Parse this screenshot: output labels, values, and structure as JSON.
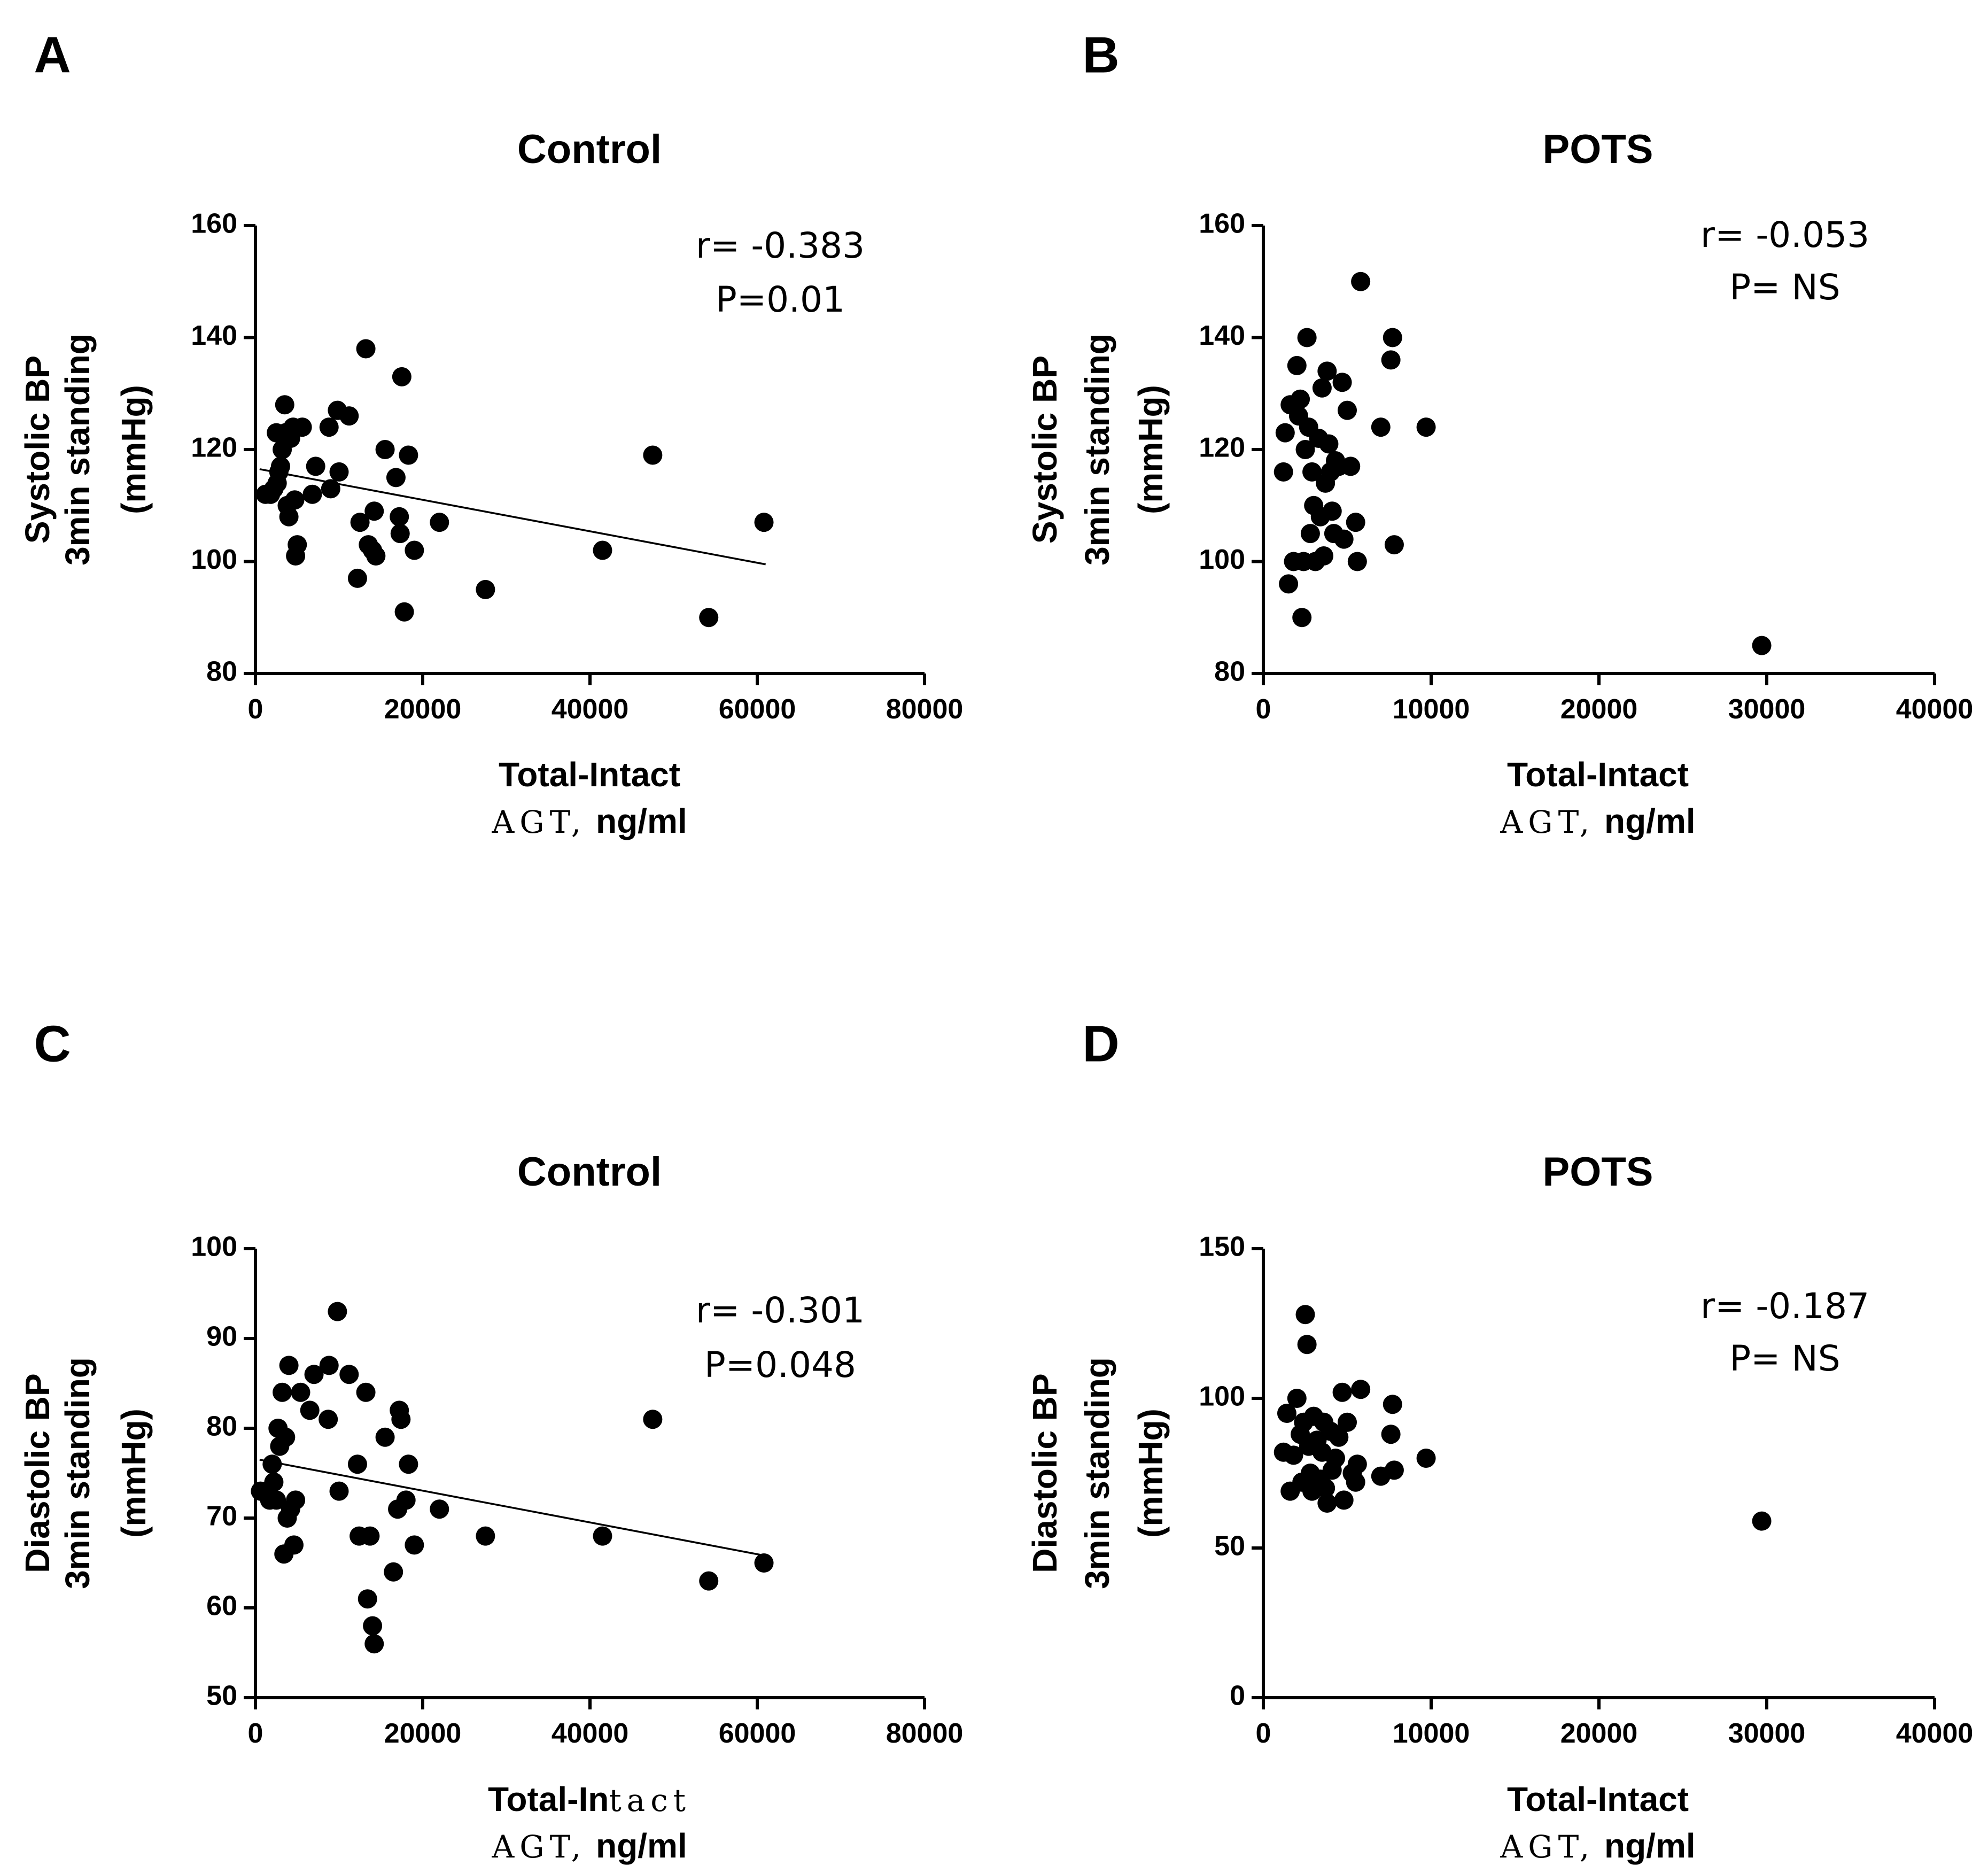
{
  "chart_data": [
    {
      "panel": "A",
      "type": "scatter",
      "title": "Control",
      "ylabel_line1": "Systolic BP",
      "ylabel_line2": "3min standing",
      "ylabel_line3": "(mmHg)",
      "xlabel_line1": "Total-Intact",
      "xlabel_line2a": "AGT,",
      "xlabel_line2b": " ng/ml",
      "xlim": [
        0,
        80000
      ],
      "ylim": [
        80,
        160
      ],
      "xticks": [
        0,
        20000,
        40000,
        60000,
        80000
      ],
      "yticks": [
        80,
        100,
        120,
        140,
        160
      ],
      "annotation_r": "r= -0.383",
      "annotation_p": "P=0.01",
      "fit_line": {
        "x": [
          500,
          61000
        ],
        "y": [
          116.5,
          99.5
        ]
      },
      "points": [
        {
          "x": 1200,
          "y": 112
        },
        {
          "x": 1800,
          "y": 112
        },
        {
          "x": 2200,
          "y": 113
        },
        {
          "x": 2500,
          "y": 123
        },
        {
          "x": 2600,
          "y": 114
        },
        {
          "x": 2800,
          "y": 116
        },
        {
          "x": 3000,
          "y": 117
        },
        {
          "x": 3200,
          "y": 120
        },
        {
          "x": 3500,
          "y": 128
        },
        {
          "x": 3600,
          "y": 123
        },
        {
          "x": 3800,
          "y": 110
        },
        {
          "x": 4000,
          "y": 108
        },
        {
          "x": 4200,
          "y": 122
        },
        {
          "x": 4500,
          "y": 124
        },
        {
          "x": 4700,
          "y": 111
        },
        {
          "x": 4800,
          "y": 101
        },
        {
          "x": 5000,
          "y": 103
        },
        {
          "x": 5600,
          "y": 124
        },
        {
          "x": 6800,
          "y": 112
        },
        {
          "x": 7200,
          "y": 117
        },
        {
          "x": 8800,
          "y": 124
        },
        {
          "x": 9000,
          "y": 113
        },
        {
          "x": 9800,
          "y": 127
        },
        {
          "x": 10000,
          "y": 116
        },
        {
          "x": 11200,
          "y": 126
        },
        {
          "x": 12200,
          "y": 97
        },
        {
          "x": 12500,
          "y": 107
        },
        {
          "x": 13200,
          "y": 138
        },
        {
          "x": 13500,
          "y": 103
        },
        {
          "x": 14000,
          "y": 102
        },
        {
          "x": 14200,
          "y": 109
        },
        {
          "x": 14400,
          "y": 101
        },
        {
          "x": 15500,
          "y": 120
        },
        {
          "x": 16800,
          "y": 115
        },
        {
          "x": 17200,
          "y": 108
        },
        {
          "x": 17300,
          "y": 105
        },
        {
          "x": 17500,
          "y": 133
        },
        {
          "x": 17800,
          "y": 91
        },
        {
          "x": 18300,
          "y": 119
        },
        {
          "x": 19000,
          "y": 102
        },
        {
          "x": 22000,
          "y": 107
        },
        {
          "x": 27500,
          "y": 95
        },
        {
          "x": 41500,
          "y": 102
        },
        {
          "x": 47500,
          "y": 119
        },
        {
          "x": 54200,
          "y": 90
        },
        {
          "x": 60800,
          "y": 107
        }
      ]
    },
    {
      "panel": "B",
      "type": "scatter",
      "title": "POTS",
      "ylabel_line1": "Systolic BP",
      "ylabel_line2": "3min standing",
      "ylabel_line3": "(mmHg)",
      "xlabel_line1": "Total-Intact",
      "xlabel_line2a": "AGT,",
      "xlabel_line2b": " ng/ml",
      "xlim": [
        0,
        40000
      ],
      "ylim": [
        80,
        160
      ],
      "xticks": [
        0,
        10000,
        20000,
        30000,
        40000
      ],
      "yticks": [
        80,
        100,
        120,
        140,
        160
      ],
      "annotation_r": "r= -0.053",
      "annotation_p": "P= NS",
      "points": [
        {
          "x": 1200,
          "y": 116
        },
        {
          "x": 1300,
          "y": 123
        },
        {
          "x": 1500,
          "y": 96
        },
        {
          "x": 1600,
          "y": 128
        },
        {
          "x": 1800,
          "y": 100
        },
        {
          "x": 2000,
          "y": 135
        },
        {
          "x": 2100,
          "y": 126
        },
        {
          "x": 2200,
          "y": 129
        },
        {
          "x": 2300,
          "y": 90
        },
        {
          "x": 2400,
          "y": 100
        },
        {
          "x": 2500,
          "y": 120
        },
        {
          "x": 2600,
          "y": 140
        },
        {
          "x": 2700,
          "y": 124
        },
        {
          "x": 2800,
          "y": 105
        },
        {
          "x": 2900,
          "y": 116
        },
        {
          "x": 3000,
          "y": 110
        },
        {
          "x": 3100,
          "y": 100
        },
        {
          "x": 3300,
          "y": 122
        },
        {
          "x": 3400,
          "y": 108
        },
        {
          "x": 3500,
          "y": 131
        },
        {
          "x": 3600,
          "y": 101
        },
        {
          "x": 3700,
          "y": 114
        },
        {
          "x": 3800,
          "y": 134
        },
        {
          "x": 3900,
          "y": 121
        },
        {
          "x": 4000,
          "y": 116
        },
        {
          "x": 4100,
          "y": 109
        },
        {
          "x": 4200,
          "y": 105
        },
        {
          "x": 4300,
          "y": 118
        },
        {
          "x": 4500,
          "y": 117
        },
        {
          "x": 4700,
          "y": 132
        },
        {
          "x": 4800,
          "y": 104
        },
        {
          "x": 5000,
          "y": 127
        },
        {
          "x": 5200,
          "y": 117
        },
        {
          "x": 5500,
          "y": 107
        },
        {
          "x": 5600,
          "y": 100
        },
        {
          "x": 5800,
          "y": 150
        },
        {
          "x": 7000,
          "y": 124
        },
        {
          "x": 7600,
          "y": 136
        },
        {
          "x": 7700,
          "y": 140
        },
        {
          "x": 7800,
          "y": 103
        },
        {
          "x": 9700,
          "y": 124
        },
        {
          "x": 29700,
          "y": 85
        }
      ]
    },
    {
      "panel": "C",
      "type": "scatter",
      "title": "Control",
      "ylabel_line1": "Diastolic BP",
      "ylabel_line2": "3min standing",
      "ylabel_line3": "(mmHg)",
      "xlabel_line1a": "Total-In",
      "xlabel_line1b": "tact",
      "xlabel_line2a": "AGT,",
      "xlabel_line2b": " ng/ml",
      "xlim": [
        0,
        80000
      ],
      "ylim": [
        50,
        100
      ],
      "xticks": [
        0,
        20000,
        40000,
        60000,
        80000
      ],
      "yticks": [
        50,
        60,
        70,
        80,
        90,
        100
      ],
      "annotation_r": "r= -0.301",
      "annotation_p": "P=0.048",
      "fit_line": {
        "x": [
          500,
          61000
        ],
        "y": [
          76.5,
          65.8
        ]
      },
      "points": [
        {
          "x": 600,
          "y": 73
        },
        {
          "x": 1200,
          "y": 73
        },
        {
          "x": 1700,
          "y": 72
        },
        {
          "x": 2000,
          "y": 76
        },
        {
          "x": 2200,
          "y": 74
        },
        {
          "x": 2500,
          "y": 72
        },
        {
          "x": 2700,
          "y": 80
        },
        {
          "x": 2900,
          "y": 78
        },
        {
          "x": 3200,
          "y": 84
        },
        {
          "x": 3400,
          "y": 66
        },
        {
          "x": 3600,
          "y": 79
        },
        {
          "x": 3800,
          "y": 70
        },
        {
          "x": 4000,
          "y": 87
        },
        {
          "x": 4200,
          "y": 71
        },
        {
          "x": 4600,
          "y": 67
        },
        {
          "x": 4800,
          "y": 72
        },
        {
          "x": 5400,
          "y": 84
        },
        {
          "x": 6500,
          "y": 82
        },
        {
          "x": 7000,
          "y": 86
        },
        {
          "x": 8700,
          "y": 81
        },
        {
          "x": 8800,
          "y": 87
        },
        {
          "x": 9800,
          "y": 93
        },
        {
          "x": 10000,
          "y": 73
        },
        {
          "x": 11200,
          "y": 86
        },
        {
          "x": 12200,
          "y": 76
        },
        {
          "x": 12400,
          "y": 68
        },
        {
          "x": 13200,
          "y": 84
        },
        {
          "x": 13400,
          "y": 61
        },
        {
          "x": 13700,
          "y": 68
        },
        {
          "x": 14000,
          "y": 58
        },
        {
          "x": 14200,
          "y": 56
        },
        {
          "x": 15500,
          "y": 79
        },
        {
          "x": 16500,
          "y": 64
        },
        {
          "x": 17000,
          "y": 71
        },
        {
          "x": 17200,
          "y": 82
        },
        {
          "x": 17400,
          "y": 81
        },
        {
          "x": 18000,
          "y": 72
        },
        {
          "x": 18300,
          "y": 76
        },
        {
          "x": 19000,
          "y": 67
        },
        {
          "x": 22000,
          "y": 71
        },
        {
          "x": 27500,
          "y": 68
        },
        {
          "x": 41500,
          "y": 68
        },
        {
          "x": 47500,
          "y": 81
        },
        {
          "x": 54200,
          "y": 63
        },
        {
          "x": 60800,
          "y": 65
        }
      ]
    },
    {
      "panel": "D",
      "type": "scatter",
      "title": "POTS",
      "ylabel_line1": "Diastolic BP",
      "ylabel_line2": "3min standing",
      "ylabel_line3": "(mmHg)",
      "xlabel_line1": "Total-Intact",
      "xlabel_line2a": "AGT,",
      "xlabel_line2b": " ng/ml",
      "xlim": [
        0,
        40000
      ],
      "ylim": [
        0,
        150
      ],
      "xticks": [
        0,
        10000,
        20000,
        30000,
        40000
      ],
      "yticks": [
        0,
        50,
        100,
        150
      ],
      "annotation_r": "r= -0.187",
      "annotation_p": "P= NS",
      "points": [
        {
          "x": 1200,
          "y": 82
        },
        {
          "x": 1400,
          "y": 95
        },
        {
          "x": 1600,
          "y": 69
        },
        {
          "x": 1800,
          "y": 81
        },
        {
          "x": 2000,
          "y": 100
        },
        {
          "x": 2200,
          "y": 88
        },
        {
          "x": 2300,
          "y": 72
        },
        {
          "x": 2400,
          "y": 92
        },
        {
          "x": 2500,
          "y": 128
        },
        {
          "x": 2600,
          "y": 118
        },
        {
          "x": 2700,
          "y": 84
        },
        {
          "x": 2800,
          "y": 75
        },
        {
          "x": 2900,
          "y": 69
        },
        {
          "x": 3000,
          "y": 94
        },
        {
          "x": 3200,
          "y": 86
        },
        {
          "x": 3400,
          "y": 73
        },
        {
          "x": 3500,
          "y": 82
        },
        {
          "x": 3600,
          "y": 92
        },
        {
          "x": 3700,
          "y": 70
        },
        {
          "x": 3800,
          "y": 65
        },
        {
          "x": 4000,
          "y": 89
        },
        {
          "x": 4100,
          "y": 76
        },
        {
          "x": 4300,
          "y": 80
        },
        {
          "x": 4500,
          "y": 87
        },
        {
          "x": 4700,
          "y": 102
        },
        {
          "x": 4800,
          "y": 66
        },
        {
          "x": 5000,
          "y": 92
        },
        {
          "x": 5300,
          "y": 75
        },
        {
          "x": 5500,
          "y": 72
        },
        {
          "x": 5600,
          "y": 78
        },
        {
          "x": 5800,
          "y": 103
        },
        {
          "x": 7000,
          "y": 74
        },
        {
          "x": 7600,
          "y": 88
        },
        {
          "x": 7700,
          "y": 98
        },
        {
          "x": 7800,
          "y": 76
        },
        {
          "x": 9700,
          "y": 80
        },
        {
          "x": 29700,
          "y": 59
        }
      ]
    }
  ]
}
